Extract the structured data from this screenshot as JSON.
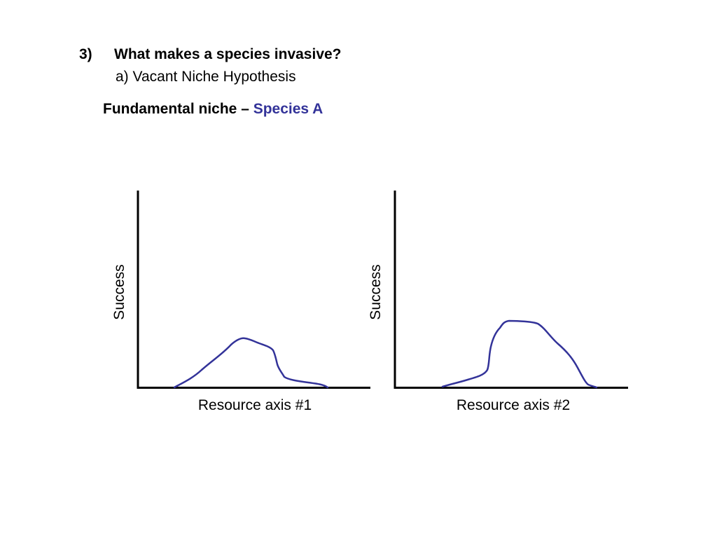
{
  "slide": {
    "heading_number": "3)",
    "heading_text": "What makes a species invasive?",
    "subheading": "a) Vacant Niche Hypothesis",
    "niche_label": "Fundamental niche –",
    "species_label": "Species A"
  },
  "colors": {
    "curve": "#333399",
    "species_text": "#333399",
    "axes": "#000000"
  },
  "graphs": [
    {
      "ylabel": "Success",
      "xlabel": "Resource axis #1"
    },
    {
      "ylabel": "Success",
      "xlabel": "Resource axis #2"
    }
  ]
}
